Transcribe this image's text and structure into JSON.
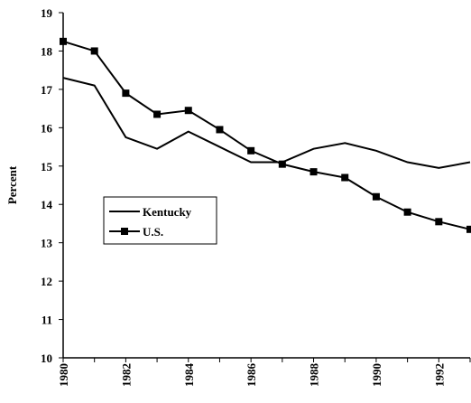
{
  "chart_data": {
    "type": "line",
    "y_label": "Percent",
    "x": [
      1980,
      1981,
      1982,
      1983,
      1984,
      1985,
      1986,
      1987,
      1988,
      1989,
      1990,
      1991,
      1992,
      1993
    ],
    "series": [
      {
        "name": "Kentucky",
        "color": "#000000",
        "marker": "none",
        "values": [
          17.3,
          17.1,
          15.75,
          15.45,
          15.9,
          15.5,
          15.1,
          15.1,
          15.45,
          15.6,
          15.4,
          15.1,
          14.95,
          15.1
        ]
      },
      {
        "name": "U.S.",
        "color": "#000000",
        "marker": "square",
        "values": [
          18.25,
          18.0,
          16.9,
          16.35,
          16.45,
          15.95,
          15.4,
          15.05,
          14.85,
          14.7,
          14.2,
          13.8,
          13.55,
          13.35
        ]
      }
    ],
    "xlim": [
      1980,
      1993
    ],
    "xticks": [
      1980,
      1982,
      1984,
      1986,
      1988,
      1990,
      1992
    ],
    "xminorticks": [
      1981,
      1983,
      1985,
      1987,
      1989,
      1991,
      1993
    ],
    "ylim": [
      10,
      19
    ],
    "yticks": [
      10,
      11,
      12,
      13,
      14,
      15,
      16,
      17,
      18,
      19
    ],
    "grid": false,
    "legend": "left"
  }
}
